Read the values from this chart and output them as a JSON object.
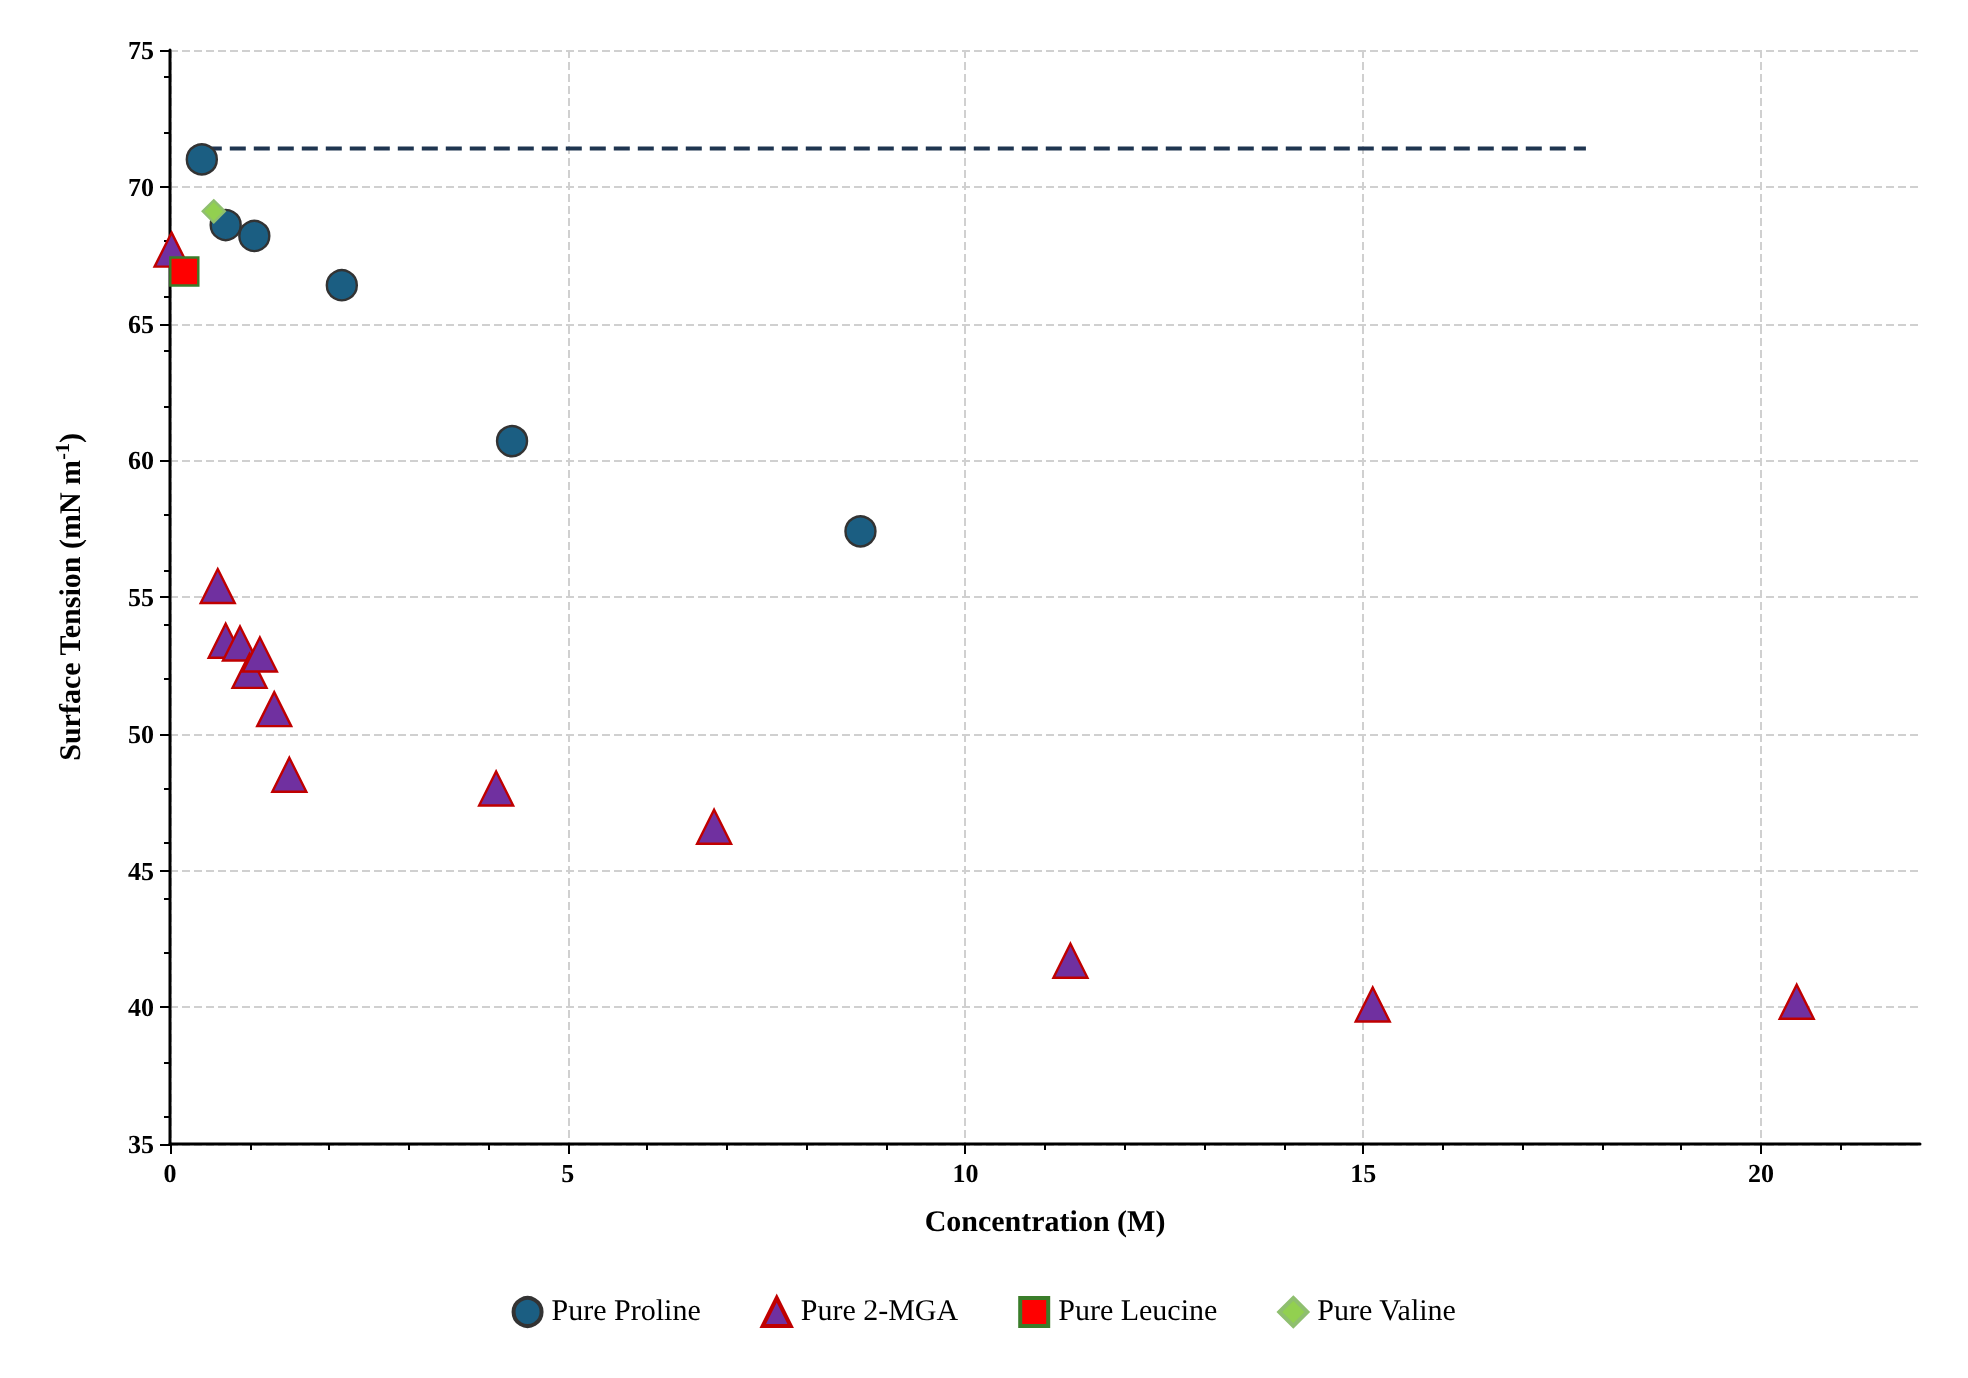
{
  "chart_data": {
    "type": "scatter",
    "xlabel": "Concentration (M)",
    "ylabel": "Surface Tension (mN m$^{-1}$)",
    "xlim": [
      0,
      22
    ],
    "xticks": [
      0,
      5,
      10,
      15,
      20
    ],
    "ylim": [
      35,
      75
    ],
    "yticks": [
      35,
      40,
      45,
      50,
      55,
      60,
      65,
      70,
      75
    ],
    "grid": true,
    "legend": "bottom",
    "series": [
      {
        "name": "Pure Proline",
        "color": "#1b5e82",
        "marker": "circle",
        "x": [
          0.4,
          0.7,
          1.06,
          2.16,
          4.3,
          8.68
        ],
        "values": [
          71.0,
          68.6,
          68.2,
          66.4,
          60.7,
          57.4
        ]
      },
      {
        "name": "Pure 2-MGA",
        "color": "#7030a0",
        "marker": "triangle",
        "x": [
          0.02,
          0.6,
          0.7,
          0.88,
          1.0,
          1.13,
          1.31,
          1.5,
          4.1,
          6.84,
          11.32,
          15.12,
          20.45
        ],
        "values": [
          67.7,
          55.4,
          53.4,
          53.3,
          52.3,
          52.9,
          50.9,
          48.5,
          48.0,
          46.6,
          41.7,
          40.1,
          40.2
        ]
      },
      {
        "name": "Pure Leucine",
        "color": "#ff0000",
        "marker": "square",
        "x": [
          0.18
        ],
        "values": [
          66.9
        ]
      },
      {
        "name": "Pure Valine",
        "color": "#92d050",
        "marker": "diamond",
        "x": [
          0.55
        ],
        "values": [
          69.1
        ]
      },
      {
        "type": "line",
        "color": "#1f3550",
        "line_style": "dashed",
        "marker": "none",
        "x": [
          0.45,
          17.8
        ],
        "values": [
          71.4,
          71.4
        ]
      }
    ]
  }
}
